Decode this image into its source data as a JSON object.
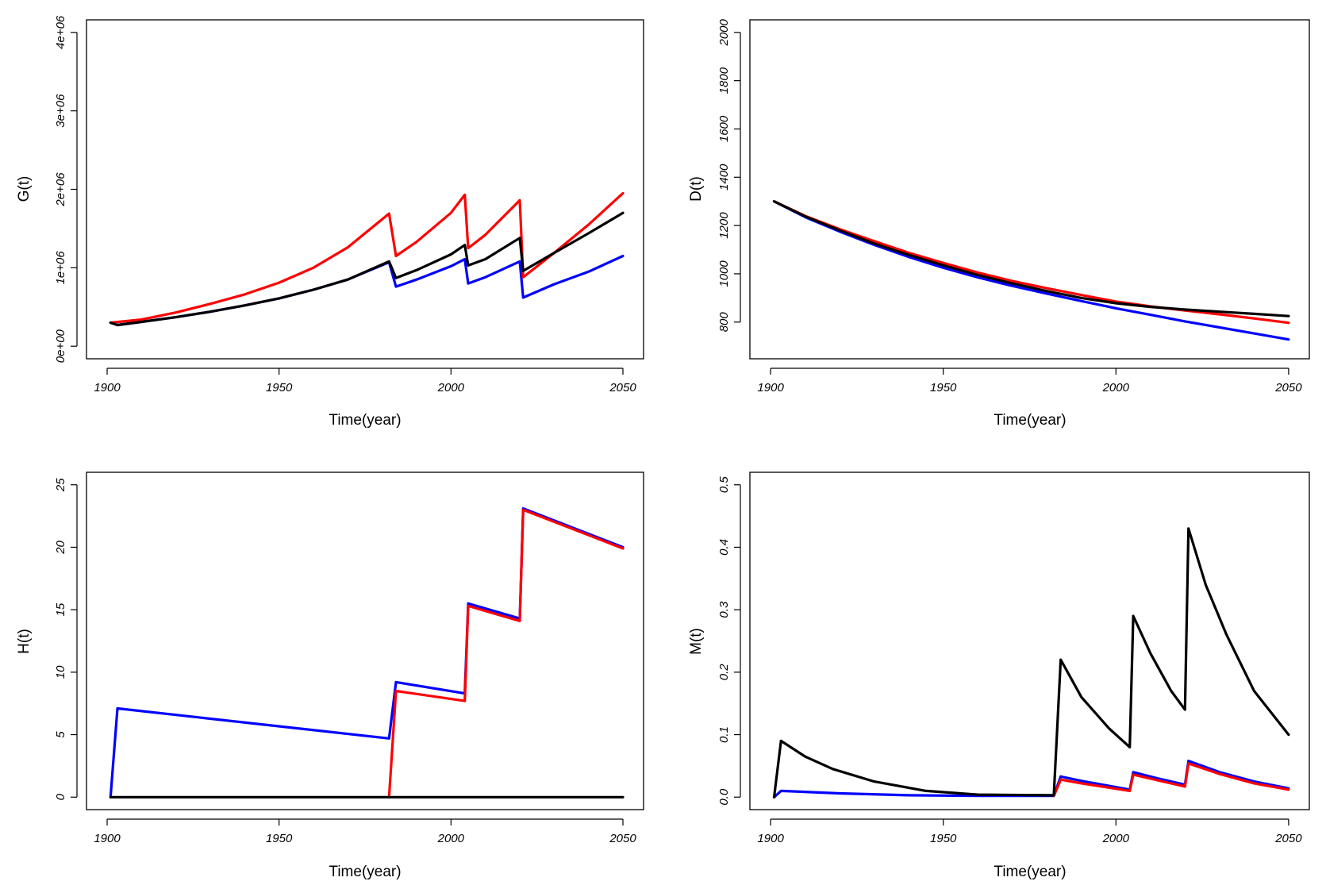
{
  "figure_title": "",
  "chart_data": [
    {
      "type": "line",
      "title": "",
      "xlabel": "Time(year)",
      "ylabel": "G(t)",
      "xlim": [
        1900,
        2050
      ],
      "ylim": [
        0,
        4000000
      ],
      "xticks": [
        1900,
        1950,
        2000,
        2050
      ],
      "xtick_labels": [
        "1900",
        "1950",
        "2000",
        "2050"
      ],
      "yticks": [
        0,
        1000000,
        2000000,
        3000000,
        4000000
      ],
      "ytick_labels": [
        "0e+00",
        "1e+06",
        "2e+06",
        "3e+06",
        "4e+06"
      ],
      "grid": false,
      "series": [
        {
          "name": "blue",
          "color": "#0000ff",
          "x": [
            1901,
            1903,
            1910,
            1920,
            1930,
            1940,
            1950,
            1960,
            1970,
            1982,
            1984,
            1990,
            2000,
            2004,
            2005,
            2010,
            2020,
            2021,
            2030,
            2040,
            2050
          ],
          "y": [
            300000,
            270000,
            310000,
            370000,
            440000,
            520000,
            610000,
            720000,
            850000,
            1070000,
            760000,
            850000,
            1020000,
            1110000,
            800000,
            880000,
            1080000,
            620000,
            790000,
            950000,
            1150000
          ]
        },
        {
          "name": "red",
          "color": "#ff0000",
          "x": [
            1901,
            1910,
            1920,
            1930,
            1940,
            1950,
            1960,
            1970,
            1982,
            1984,
            1990,
            2000,
            2004,
            2005,
            2010,
            2020,
            2021,
            2030,
            2040,
            2050
          ],
          "y": [
            300000,
            340000,
            430000,
            540000,
            660000,
            810000,
            1000000,
            1260000,
            1690000,
            1150000,
            1330000,
            1700000,
            1930000,
            1250000,
            1420000,
            1860000,
            880000,
            1190000,
            1550000,
            1950000
          ]
        },
        {
          "name": "black",
          "color": "#000000",
          "x": [
            1901,
            1903,
            1910,
            1920,
            1930,
            1940,
            1950,
            1960,
            1970,
            1982,
            1984,
            1990,
            2000,
            2004,
            2005,
            2010,
            2020,
            2021,
            2030,
            2040,
            2050
          ],
          "y": [
            300000,
            270000,
            310000,
            370000,
            440000,
            520000,
            610000,
            720000,
            850000,
            1080000,
            870000,
            970000,
            1170000,
            1290000,
            1030000,
            1110000,
            1380000,
            960000,
            1190000,
            1440000,
            1700000
          ]
        }
      ]
    },
    {
      "type": "line",
      "title": "",
      "xlabel": "Time(year)",
      "ylabel": "D(t)",
      "xlim": [
        1900,
        2050
      ],
      "ylim": [
        700,
        2000
      ],
      "xticks": [
        1900,
        1950,
        2000,
        2050
      ],
      "xtick_labels": [
        "1900",
        "1950",
        "2000",
        "2050"
      ],
      "yticks": [
        800,
        1000,
        1200,
        1400,
        1600,
        1800,
        2000
      ],
      "ytick_labels": [
        "800",
        "1000",
        "1200",
        "1400",
        "1600",
        "1800",
        "2000"
      ],
      "grid": false,
      "series": [
        {
          "name": "blue",
          "color": "#0000ff",
          "x": [
            1901,
            1910,
            1920,
            1930,
            1940,
            1950,
            1960,
            1970,
            1980,
            1990,
            2000,
            2010,
            2020,
            2030,
            2040,
            2050
          ],
          "y": [
            1300,
            1235,
            1175,
            1120,
            1070,
            1025,
            985,
            950,
            918,
            887,
            857,
            830,
            803,
            778,
            753,
            728
          ]
        },
        {
          "name": "red",
          "color": "#ff0000",
          "x": [
            1901,
            1910,
            1920,
            1930,
            1940,
            1950,
            1960,
            1970,
            1980,
            1990,
            2000,
            2010,
            2020,
            2030,
            2040,
            2050
          ],
          "y": [
            1300,
            1240,
            1185,
            1135,
            1087,
            1045,
            1005,
            970,
            940,
            912,
            885,
            865,
            848,
            832,
            815,
            797
          ]
        },
        {
          "name": "black",
          "color": "#000000",
          "x": [
            1901,
            1910,
            1920,
            1930,
            1940,
            1950,
            1960,
            1970,
            1980,
            1990,
            2000,
            2010,
            2020,
            2030,
            2040,
            2050
          ],
          "y": [
            1300,
            1238,
            1180,
            1125,
            1078,
            1035,
            995,
            960,
            928,
            900,
            878,
            863,
            852,
            843,
            834,
            825
          ]
        }
      ]
    },
    {
      "type": "line",
      "title": "",
      "xlabel": "Time(year)",
      "ylabel": "H(t)",
      "xlim": [
        1900,
        2050
      ],
      "ylim": [
        0,
        25
      ],
      "xticks": [
        1900,
        1950,
        2000,
        2050
      ],
      "xtick_labels": [
        "1900",
        "1950",
        "2000",
        "2050"
      ],
      "yticks": [
        0,
        5,
        10,
        15,
        20,
        25
      ],
      "ytick_labels": [
        "0",
        "5",
        "10",
        "15",
        "20",
        "25"
      ],
      "grid": false,
      "series": [
        {
          "name": "blue",
          "color": "#0000ff",
          "x": [
            1901,
            1903,
            1982,
            1984,
            2004,
            2005,
            2020,
            2021,
            2050
          ],
          "y": [
            0,
            7.1,
            4.7,
            9.2,
            8.3,
            15.5,
            14.3,
            23.1,
            20.0
          ]
        },
        {
          "name": "red",
          "color": "#ff0000",
          "x": [
            1982,
            1984,
            2004,
            2005,
            2020,
            2021,
            2050
          ],
          "y": [
            0,
            8.5,
            7.7,
            15.3,
            14.1,
            23.0,
            19.9
          ]
        },
        {
          "name": "black",
          "color": "#000000",
          "x": [
            1901,
            2050
          ],
          "y": [
            0,
            0
          ]
        }
      ]
    },
    {
      "type": "line",
      "title": "",
      "xlabel": "Time(year)",
      "ylabel": "M(t)",
      "xlim": [
        1900,
        2050
      ],
      "ylim": [
        0,
        0.5
      ],
      "xticks": [
        1900,
        1950,
        2000,
        2050
      ],
      "xtick_labels": [
        "1900",
        "1950",
        "2000",
        "2050"
      ],
      "yticks": [
        0.0,
        0.1,
        0.2,
        0.3,
        0.4,
        0.5
      ],
      "ytick_labels": [
        "0.0",
        "0.1",
        "0.2",
        "0.3",
        "0.4",
        "0.5"
      ],
      "grid": false,
      "series": [
        {
          "name": "blue",
          "color": "#0000ff",
          "x": [
            1901,
            1903,
            1920,
            1940,
            1960,
            1982,
            1984,
            1990,
            2004,
            2005,
            2012,
            2020,
            2021,
            2030,
            2040,
            2050
          ],
          "y": [
            0,
            0.01,
            0.006,
            0.003,
            0.002,
            0.002,
            0.033,
            0.026,
            0.012,
            0.04,
            0.03,
            0.02,
            0.058,
            0.04,
            0.025,
            0.014
          ]
        },
        {
          "name": "red",
          "color": "#ff0000",
          "x": [
            1982,
            1984,
            1990,
            2004,
            2005,
            2012,
            2020,
            2021,
            2030,
            2040,
            2050
          ],
          "y": [
            0.002,
            0.028,
            0.022,
            0.01,
            0.036,
            0.027,
            0.017,
            0.054,
            0.037,
            0.022,
            0.012
          ]
        },
        {
          "name": "black",
          "color": "#000000",
          "x": [
            1901,
            1903,
            1910,
            1918,
            1930,
            1945,
            1960,
            1982,
            1984,
            1990,
            1998,
            2004,
            2005,
            2010,
            2016,
            2020,
            2021,
            2026,
            2032,
            2040,
            2050
          ],
          "y": [
            0,
            0.09,
            0.065,
            0.045,
            0.025,
            0.01,
            0.004,
            0.003,
            0.22,
            0.16,
            0.11,
            0.08,
            0.29,
            0.23,
            0.17,
            0.14,
            0.43,
            0.34,
            0.26,
            0.17,
            0.1
          ]
        }
      ]
    }
  ]
}
